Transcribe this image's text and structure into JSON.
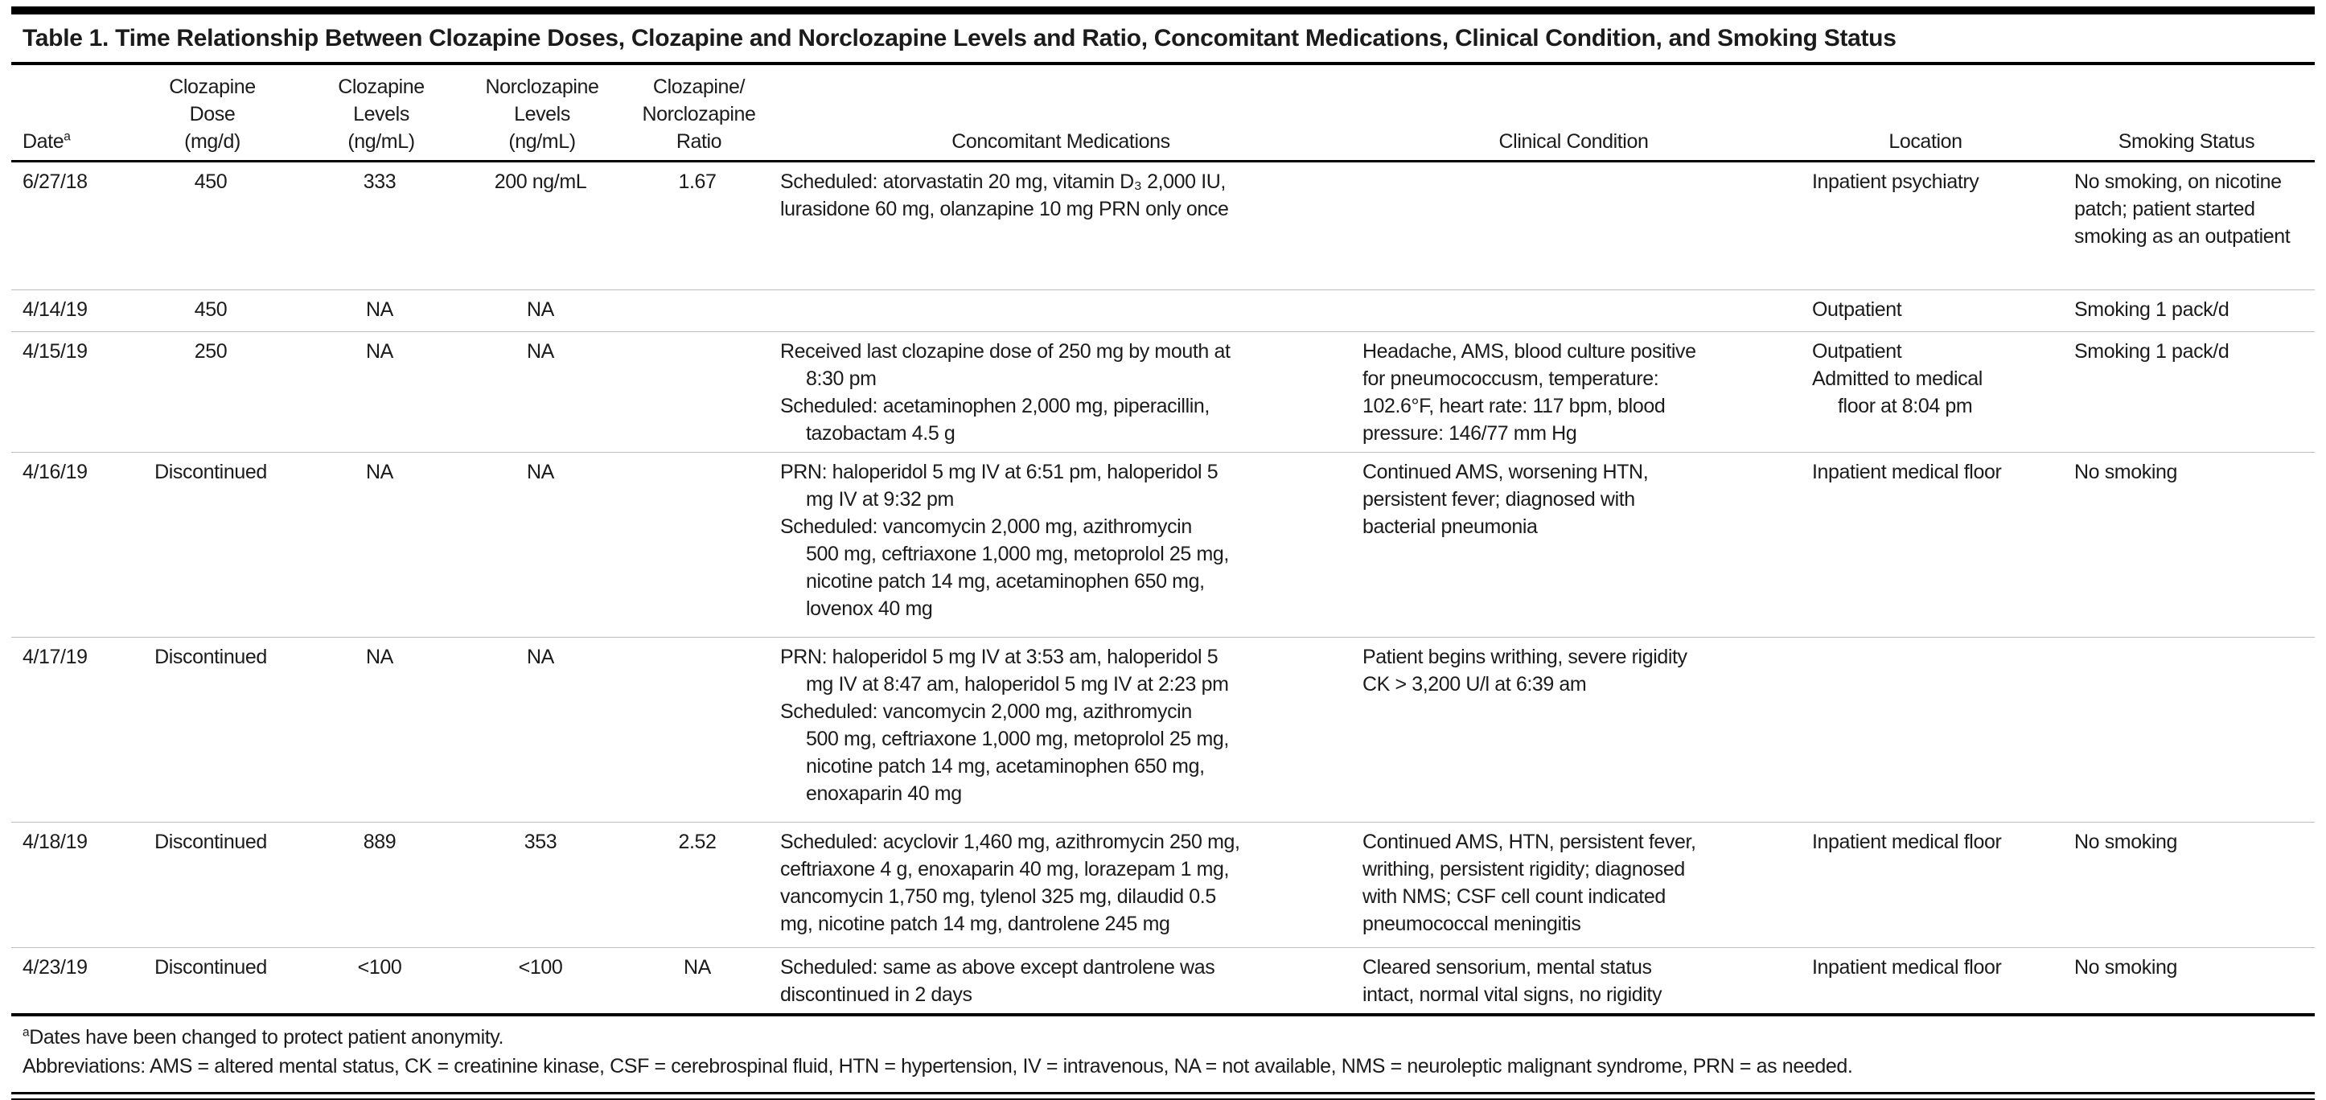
{
  "title": "Table 1. Time Relationship Between Clozapine Doses, Clozapine and Norclozapine Levels and Ratio, Concomitant Medications, Clinical Condition, and Smoking Status",
  "columns": {
    "date": {
      "label": "Date",
      "sup": "a"
    },
    "dose": {
      "lines": [
        "Clozapine",
        "Dose",
        "(mg/d)"
      ]
    },
    "cloz_levels": {
      "lines": [
        "Clozapine",
        "Levels",
        "(ng/mL)"
      ]
    },
    "norcloz_levels": {
      "lines": [
        "Norclozapine",
        "Levels",
        "(ng/mL)"
      ]
    },
    "ratio": {
      "lines": [
        "Clozapine/",
        "Norclozapine",
        "Ratio"
      ]
    },
    "meds": {
      "label": "Concomitant Medications"
    },
    "clinical": {
      "label": "Clinical Condition"
    },
    "location": {
      "label": "Location"
    },
    "smoking": {
      "label": "Smoking Status"
    }
  },
  "rows": [
    {
      "date": "6/27/18",
      "dose": "450",
      "cloz": "333",
      "norcloz": "200 ng/mL",
      "ratio": "1.67",
      "meds": [
        {
          "t": "Scheduled: atorvastatin 20 mg, vitamin D₃ 2,000 IU,",
          "i": 0
        },
        {
          "t": "lurasidone 60 mg, olanzapine 10 mg PRN only once",
          "i": 0
        }
      ],
      "clinical": [],
      "location": [
        {
          "t": "Inpatient psychiatry",
          "i": 0
        }
      ],
      "smoking": [
        {
          "t": "No smoking, on nicotine",
          "i": 0
        },
        {
          "t": "patch; patient started",
          "i": 0
        },
        {
          "t": "smoking as an outpatient",
          "i": 0
        }
      ]
    },
    {
      "date": "4/14/19",
      "dose": "450",
      "cloz": "NA",
      "norcloz": "NA",
      "ratio": "",
      "meds": [],
      "clinical": [],
      "location": [
        {
          "t": "Outpatient",
          "i": 0
        }
      ],
      "smoking": [
        {
          "t": "Smoking 1 pack/d",
          "i": 0
        }
      ]
    },
    {
      "date": "4/15/19",
      "dose": "250",
      "cloz": "NA",
      "norcloz": "NA",
      "ratio": "",
      "meds": [
        {
          "t": "Received last clozapine dose of 250 mg by mouth at",
          "i": 0
        },
        {
          "t": "8:30 pm",
          "i": 1
        },
        {
          "t": "Scheduled: acetaminophen 2,000 mg, piperacillin,",
          "i": 0
        },
        {
          "t": "tazobactam 4.5 g",
          "i": 1
        }
      ],
      "clinical": [
        {
          "t": "Headache, AMS, blood culture positive",
          "i": 0
        },
        {
          "t": "for pneumococcusm, temperature:",
          "i": 0
        },
        {
          "t": "102.6°F, heart rate: 117 bpm, blood",
          "i": 0
        },
        {
          "t": "pressure: 146/77 mm Hg",
          "i": 0
        }
      ],
      "location": [
        {
          "t": "Outpatient",
          "i": 0
        },
        {
          "t": "Admitted to medical",
          "i": 0
        },
        {
          "t": "floor at 8:04 pm",
          "i": 1
        }
      ],
      "smoking": [
        {
          "t": "Smoking 1 pack/d",
          "i": 0
        }
      ]
    },
    {
      "date": "4/16/19",
      "dose": "Discontinued",
      "cloz": "NA",
      "norcloz": "NA",
      "ratio": "",
      "meds": [
        {
          "t": "PRN: haloperidol 5 mg IV at 6:51 pm, haloperidol 5",
          "i": 0
        },
        {
          "t": "mg IV at 9:32 pm",
          "i": 1
        },
        {
          "t": "Scheduled: vancomycin 2,000 mg, azithromycin",
          "i": 0
        },
        {
          "t": "500 mg, ceftriaxone 1,000 mg, metoprolol 25 mg,",
          "i": 1
        },
        {
          "t": "nicotine patch 14 mg, acetaminophen 650 mg,",
          "i": 1
        },
        {
          "t": "lovenox 40 mg",
          "i": 1
        }
      ],
      "clinical": [
        {
          "t": "Continued AMS, worsening HTN,",
          "i": 0
        },
        {
          "t": "persistent fever; diagnosed with",
          "i": 0
        },
        {
          "t": "bacterial pneumonia",
          "i": 0
        }
      ],
      "location": [
        {
          "t": "Inpatient medical floor",
          "i": 0
        }
      ],
      "smoking": [
        {
          "t": "No smoking",
          "i": 0
        }
      ]
    },
    {
      "date": "4/17/19",
      "dose": "Discontinued",
      "cloz": "NA",
      "norcloz": "NA",
      "ratio": "",
      "meds": [
        {
          "t": "PRN: haloperidol 5 mg IV at 3:53 am, haloperidol 5",
          "i": 0
        },
        {
          "t": "mg IV at 8:47 am, haloperidol 5 mg IV at 2:23 pm",
          "i": 1
        },
        {
          "t": "Scheduled: vancomycin 2,000 mg, azithromycin",
          "i": 0
        },
        {
          "t": "500 mg, ceftriaxone 1,000 mg, metoprolol 25 mg,",
          "i": 1
        },
        {
          "t": "nicotine patch 14 mg, acetaminophen 650 mg,",
          "i": 1
        },
        {
          "t": "enoxaparin 40 mg",
          "i": 1
        }
      ],
      "clinical": [
        {
          "t": "Patient begins writhing, severe rigidity",
          "i": 0
        },
        {
          "t": "CK > 3,200 U/l at 6:39 am",
          "i": 0
        }
      ],
      "location": [],
      "smoking": []
    },
    {
      "date": "4/18/19",
      "dose": "Discontinued",
      "cloz": "889",
      "norcloz": "353",
      "ratio": "2.52",
      "meds": [
        {
          "t": "Scheduled: acyclovir 1,460 mg, azithromycin 250 mg,",
          "i": 0
        },
        {
          "t": "ceftriaxone 4 g,  enoxaparin 40 mg, lorazepam 1 mg,",
          "i": 0
        },
        {
          "t": "vancomycin 1,750 mg, tylenol 325 mg, dilaudid 0.5",
          "i": 0
        },
        {
          "t": "mg, nicotine patch 14 mg, dantrolene 245 mg",
          "i": 0
        }
      ],
      "clinical": [
        {
          "t": "Continued AMS, HTN, persistent fever,",
          "i": 0
        },
        {
          "t": "writhing, persistent rigidity; diagnosed",
          "i": 0
        },
        {
          "t": "with NMS; CSF cell count indicated",
          "i": 0
        },
        {
          "t": "pneumococcal meningitis",
          "i": 0
        }
      ],
      "location": [
        {
          "t": "Inpatient medical floor",
          "i": 0
        }
      ],
      "smoking": [
        {
          "t": "No smoking",
          "i": 0
        }
      ]
    },
    {
      "date": "4/23/19",
      "dose": "Discontinued",
      "cloz": "<100",
      "norcloz": "<100",
      "ratio": "NA",
      "meds": [
        {
          "t": "Scheduled: same as above except dantrolene was",
          "i": 0
        },
        {
          "t": "discontinued in 2 days",
          "i": 0
        }
      ],
      "clinical": [
        {
          "t": "Cleared sensorium, mental status",
          "i": 0
        },
        {
          "t": "intact, normal vital signs, no rigidity",
          "i": 0
        }
      ],
      "location": [
        {
          "t": "Inpatient medical floor",
          "i": 0
        }
      ],
      "smoking": [
        {
          "t": "No smoking",
          "i": 0
        }
      ]
    }
  ],
  "footnotes": {
    "marker": "a",
    "note": "Dates have been changed to protect patient anonymity.",
    "abbreviations": "Abbreviations: AMS = altered mental status, CK = creatinine kinase, CSF = cerebrospinal fluid, HTN = hypertension, IV = intravenous, NA = not available, NMS = neuroleptic malignant syndrome, PRN = as needed."
  }
}
